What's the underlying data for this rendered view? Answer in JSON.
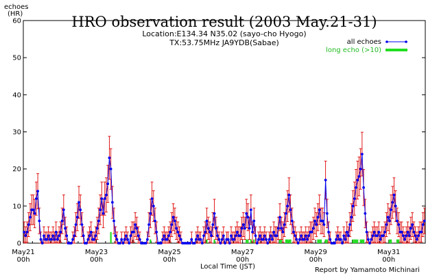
{
  "chart_data": {
    "type": "line",
    "title": "HRO observation result (2003 May.21-31)",
    "subtitle_lines": [
      "Location:E134.34 N35.02 (sayo-cho Hyogo)",
      "TX:53.75MHz JA9YDB(Sabae)"
    ],
    "ylabel_lines": [
      "echoes",
      "(HR)"
    ],
    "xlabel": "Local Time (JST)",
    "credit": "Report by Yamamoto Michinari",
    "ylim": [
      0,
      60
    ],
    "yticks": [
      "0",
      "10",
      "20",
      "30",
      "40",
      "50",
      "60"
    ],
    "xlim_hours": [
      0,
      264
    ],
    "xticks": [
      {
        "hour": 0,
        "line1": "May21",
        "line2": "00h"
      },
      {
        "hour": 48,
        "line1": "May23",
        "line2": "00h"
      },
      {
        "hour": 96,
        "line1": "May25",
        "line2": "00h"
      },
      {
        "hour": 144,
        "line1": "May27",
        "line2": "00h"
      },
      {
        "hour": 192,
        "line1": "May29",
        "line2": "00h"
      },
      {
        "hour": 240,
        "line1": "May31",
        "line2": "00h"
      }
    ],
    "legend_position": "top-right",
    "colors": {
      "all": "#0000ee",
      "err": "#dd0000",
      "long": "#22dd22"
    },
    "series": [
      {
        "name": "all echoes",
        "values": [
          3,
          2,
          3,
          5,
          7,
          9,
          9,
          8,
          12,
          14,
          6,
          1,
          0,
          2,
          1,
          1,
          2,
          1,
          1,
          2,
          1,
          3,
          1,
          2,
          3,
          6,
          9,
          4,
          2,
          0,
          0,
          0,
          1,
          2,
          5,
          7,
          11,
          9,
          5,
          2,
          0,
          0,
          1,
          2,
          3,
          1,
          1,
          2,
          4,
          6,
          9,
          12,
          8,
          12,
          13,
          16,
          23,
          20,
          11,
          6,
          2,
          1,
          0,
          0,
          1,
          0,
          1,
          2,
          1,
          0,
          2,
          3,
          3,
          5,
          4,
          2,
          1,
          0,
          0,
          0,
          0,
          1,
          5,
          8,
          12,
          10,
          6,
          3,
          0,
          0,
          0,
          1,
          2,
          1,
          1,
          2,
          3,
          5,
          7,
          6,
          4,
          3,
          2,
          1,
          0,
          0,
          0,
          0,
          0,
          0,
          1,
          0,
          0,
          1,
          2,
          1,
          1,
          0,
          2,
          3,
          6,
          4,
          3,
          2,
          5,
          8,
          4,
          2,
          1,
          0,
          1,
          2,
          0,
          1,
          1,
          0,
          2,
          1,
          1,
          2,
          3,
          2,
          2,
          4,
          5,
          4,
          8,
          7,
          4,
          9,
          3,
          6,
          2,
          0,
          1,
          2,
          1,
          1,
          2,
          1,
          0,
          1,
          2,
          1,
          3,
          2,
          2,
          4,
          7,
          4,
          3,
          5,
          8,
          10,
          13,
          9,
          6,
          3,
          2,
          1,
          0,
          1,
          2,
          1,
          1,
          2,
          1,
          2,
          3,
          3,
          4,
          6,
          5,
          7,
          9,
          6,
          6,
          5,
          17,
          8,
          3,
          1,
          0,
          0,
          0,
          1,
          2,
          1,
          1,
          0,
          2,
          1,
          3,
          2,
          5,
          7,
          10,
          12,
          15,
          17,
          18,
          20,
          24,
          15,
          8,
          3,
          1,
          0,
          1,
          2,
          3,
          2,
          2,
          3,
          1,
          2,
          2,
          3,
          5,
          7,
          6,
          9,
          11,
          13,
          10,
          6,
          5,
          3,
          3,
          2,
          1,
          2,
          3,
          2,
          4,
          5,
          3,
          2,
          1,
          2,
          3,
          3,
          5,
          6
        ]
      },
      {
        "name": "long echo (>10)",
        "values": [
          0,
          0,
          0,
          0,
          0,
          0,
          0,
          0,
          0,
          0,
          0,
          0,
          0,
          0,
          0,
          0,
          0,
          0,
          0,
          0,
          0,
          0,
          0,
          0,
          0,
          0,
          0,
          0,
          0,
          0,
          0,
          0,
          0,
          0,
          0,
          0,
          0,
          0,
          0,
          0,
          0,
          0,
          0,
          0,
          0,
          0,
          0,
          0,
          0,
          0,
          0,
          0,
          0,
          0,
          0,
          0,
          0,
          3,
          0,
          0,
          0,
          0,
          0,
          0,
          0,
          0,
          0,
          0,
          0,
          0,
          0,
          0,
          0,
          0,
          0,
          0,
          0,
          0,
          0,
          0,
          0,
          0,
          0,
          1,
          0,
          0,
          0,
          0,
          0,
          0,
          0,
          0,
          0,
          0,
          0,
          0,
          0,
          0,
          0,
          0,
          0,
          0,
          0,
          0,
          0,
          0,
          0,
          0,
          0,
          0,
          0,
          0,
          0,
          0,
          0,
          0,
          0,
          0,
          0,
          0,
          1,
          0,
          0,
          0,
          0,
          1,
          0,
          0,
          0,
          0,
          0,
          0,
          0,
          0,
          0,
          0,
          0,
          0,
          0,
          0,
          0,
          0,
          0,
          0,
          0,
          0,
          1,
          1,
          0,
          1,
          0,
          1,
          0,
          0,
          0,
          0,
          0,
          0,
          0,
          0,
          0,
          0,
          0,
          0,
          0,
          0,
          0,
          0,
          1,
          1,
          0,
          0,
          1,
          1,
          1,
          1,
          0,
          0,
          0,
          0,
          0,
          0,
          0,
          0,
          0,
          0,
          0,
          0,
          0,
          0,
          0,
          0,
          0,
          1,
          1,
          1,
          0,
          0,
          1,
          1,
          0,
          0,
          0,
          0,
          0,
          0,
          0,
          0,
          0,
          0,
          0,
          0,
          0,
          0,
          0,
          0,
          1,
          1,
          1,
          1,
          0,
          1,
          1,
          1,
          0,
          0,
          0,
          0,
          0,
          0,
          0,
          0,
          0,
          0,
          0,
          0,
          0,
          0,
          0,
          0,
          1,
          1,
          0,
          0,
          0,
          1,
          1,
          0,
          0,
          0,
          0,
          0,
          0,
          0,
          0,
          0,
          0,
          0,
          0,
          0,
          0,
          0,
          0,
          0
        ]
      }
    ]
  }
}
